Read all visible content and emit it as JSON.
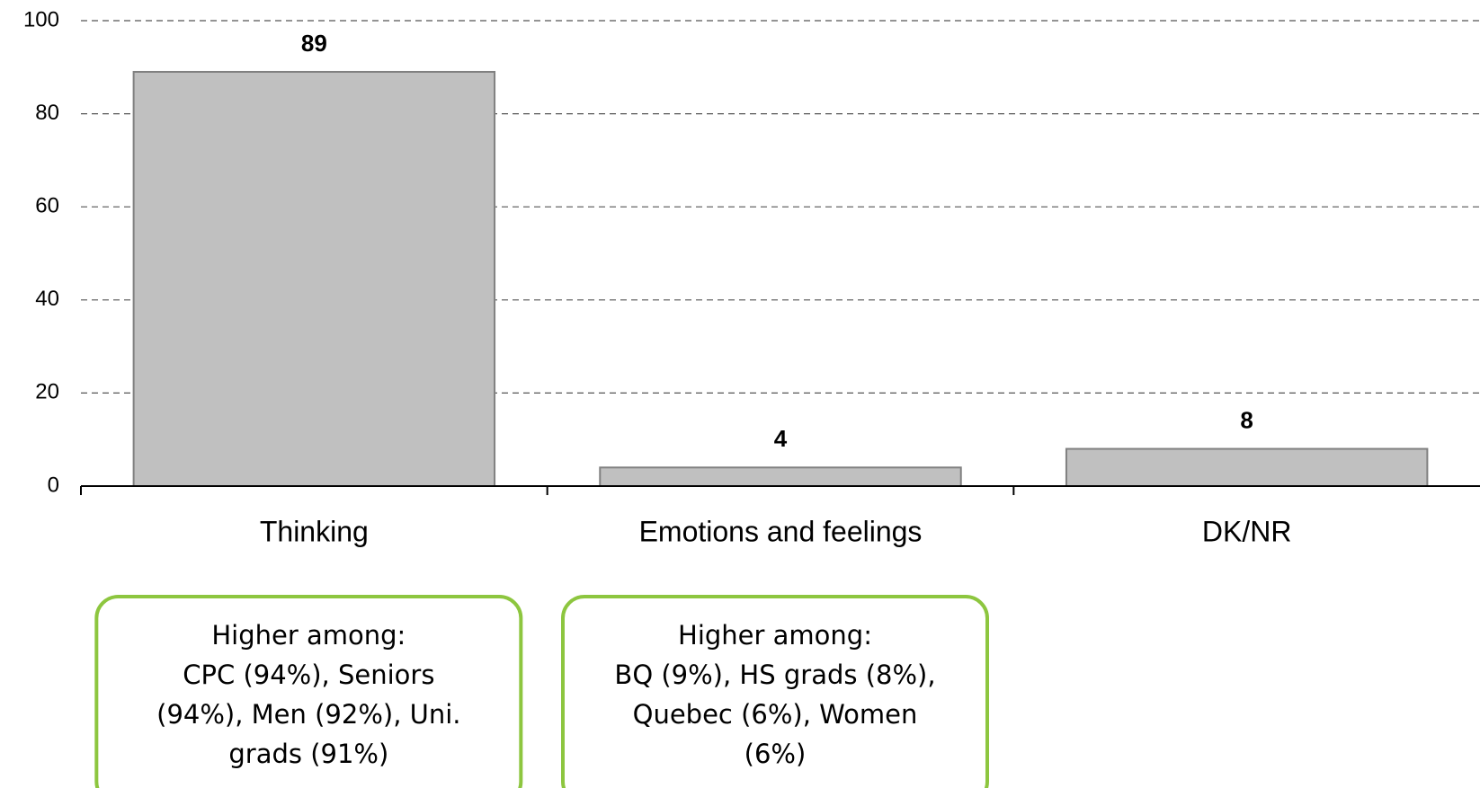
{
  "chart_data": {
    "type": "bar",
    "categories": [
      "Thinking",
      "Emotions and feelings",
      "DK/NR"
    ],
    "values": [
      89,
      4,
      8
    ],
    "color": "#c0c0c0",
    "ylim": [
      0,
      100
    ],
    "yticks": [
      0,
      20,
      40,
      60,
      80,
      100
    ],
    "grid": true,
    "annotations": [
      {
        "category": 0,
        "lines": [
          "Higher among:",
          "CPC (94%), Seniors",
          "(94%), Men (92%), Uni.",
          "grads (91%)"
        ]
      },
      {
        "category": 1,
        "lines": [
          "Higher among:",
          "BQ (9%), HS grads (8%),",
          "Quebec (6%), Women",
          "(6%)"
        ]
      }
    ]
  }
}
